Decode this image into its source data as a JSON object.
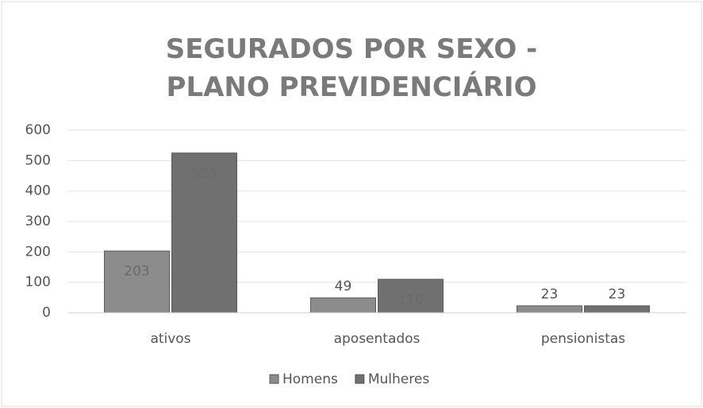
{
  "chart_data": {
    "type": "bar",
    "title": "SEGURADOS POR SEXO - PLANO PREVIDENCIÁRIO",
    "categories": [
      "ativos",
      "aposentados",
      "pensionistas"
    ],
    "series": [
      {
        "name": "Homens",
        "color": "#8c8c8c",
        "values": [
          203,
          49,
          23
        ]
      },
      {
        "name": "Mulheres",
        "color": "#707070",
        "values": [
          525,
          110,
          23
        ]
      }
    ],
    "ylim": [
      0,
      600
    ],
    "yticks": [
      0,
      100,
      200,
      300,
      400,
      500,
      600
    ],
    "grid": true,
    "legend": "bottom"
  }
}
